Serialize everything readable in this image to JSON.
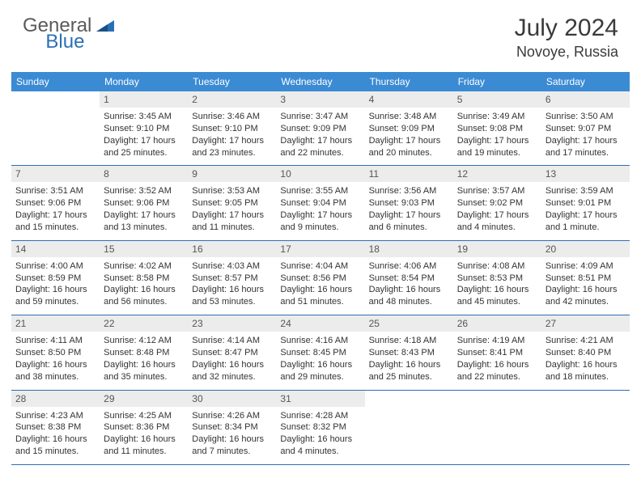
{
  "brand": {
    "part1": "General",
    "part2": "Blue"
  },
  "title": {
    "month_year": "July 2024",
    "location": "Novoye, Russia"
  },
  "day_headers": [
    "Sunday",
    "Monday",
    "Tuesday",
    "Wednesday",
    "Thursday",
    "Friday",
    "Saturday"
  ],
  "colors": {
    "header_bg": "#3b8bd4",
    "header_text": "#ffffff",
    "rule": "#2a6fb5",
    "daynum_bg": "#ececec",
    "daynum_text": "#555555",
    "body_text": "#333333",
    "brand_gray": "#5a5a5a",
    "brand_blue": "#2a6fb5"
  },
  "weeks": [
    [
      null,
      {
        "n": "1",
        "sr": "Sunrise: 3:45 AM",
        "ss": "Sunset: 9:10 PM",
        "d1": "Daylight: 17 hours",
        "d2": "and 25 minutes."
      },
      {
        "n": "2",
        "sr": "Sunrise: 3:46 AM",
        "ss": "Sunset: 9:10 PM",
        "d1": "Daylight: 17 hours",
        "d2": "and 23 minutes."
      },
      {
        "n": "3",
        "sr": "Sunrise: 3:47 AM",
        "ss": "Sunset: 9:09 PM",
        "d1": "Daylight: 17 hours",
        "d2": "and 22 minutes."
      },
      {
        "n": "4",
        "sr": "Sunrise: 3:48 AM",
        "ss": "Sunset: 9:09 PM",
        "d1": "Daylight: 17 hours",
        "d2": "and 20 minutes."
      },
      {
        "n": "5",
        "sr": "Sunrise: 3:49 AM",
        "ss": "Sunset: 9:08 PM",
        "d1": "Daylight: 17 hours",
        "d2": "and 19 minutes."
      },
      {
        "n": "6",
        "sr": "Sunrise: 3:50 AM",
        "ss": "Sunset: 9:07 PM",
        "d1": "Daylight: 17 hours",
        "d2": "and 17 minutes."
      }
    ],
    [
      {
        "n": "7",
        "sr": "Sunrise: 3:51 AM",
        "ss": "Sunset: 9:06 PM",
        "d1": "Daylight: 17 hours",
        "d2": "and 15 minutes."
      },
      {
        "n": "8",
        "sr": "Sunrise: 3:52 AM",
        "ss": "Sunset: 9:06 PM",
        "d1": "Daylight: 17 hours",
        "d2": "and 13 minutes."
      },
      {
        "n": "9",
        "sr": "Sunrise: 3:53 AM",
        "ss": "Sunset: 9:05 PM",
        "d1": "Daylight: 17 hours",
        "d2": "and 11 minutes."
      },
      {
        "n": "10",
        "sr": "Sunrise: 3:55 AM",
        "ss": "Sunset: 9:04 PM",
        "d1": "Daylight: 17 hours",
        "d2": "and 9 minutes."
      },
      {
        "n": "11",
        "sr": "Sunrise: 3:56 AM",
        "ss": "Sunset: 9:03 PM",
        "d1": "Daylight: 17 hours",
        "d2": "and 6 minutes."
      },
      {
        "n": "12",
        "sr": "Sunrise: 3:57 AM",
        "ss": "Sunset: 9:02 PM",
        "d1": "Daylight: 17 hours",
        "d2": "and 4 minutes."
      },
      {
        "n": "13",
        "sr": "Sunrise: 3:59 AM",
        "ss": "Sunset: 9:01 PM",
        "d1": "Daylight: 17 hours",
        "d2": "and 1 minute."
      }
    ],
    [
      {
        "n": "14",
        "sr": "Sunrise: 4:00 AM",
        "ss": "Sunset: 8:59 PM",
        "d1": "Daylight: 16 hours",
        "d2": "and 59 minutes."
      },
      {
        "n": "15",
        "sr": "Sunrise: 4:02 AM",
        "ss": "Sunset: 8:58 PM",
        "d1": "Daylight: 16 hours",
        "d2": "and 56 minutes."
      },
      {
        "n": "16",
        "sr": "Sunrise: 4:03 AM",
        "ss": "Sunset: 8:57 PM",
        "d1": "Daylight: 16 hours",
        "d2": "and 53 minutes."
      },
      {
        "n": "17",
        "sr": "Sunrise: 4:04 AM",
        "ss": "Sunset: 8:56 PM",
        "d1": "Daylight: 16 hours",
        "d2": "and 51 minutes."
      },
      {
        "n": "18",
        "sr": "Sunrise: 4:06 AM",
        "ss": "Sunset: 8:54 PM",
        "d1": "Daylight: 16 hours",
        "d2": "and 48 minutes."
      },
      {
        "n": "19",
        "sr": "Sunrise: 4:08 AM",
        "ss": "Sunset: 8:53 PM",
        "d1": "Daylight: 16 hours",
        "d2": "and 45 minutes."
      },
      {
        "n": "20",
        "sr": "Sunrise: 4:09 AM",
        "ss": "Sunset: 8:51 PM",
        "d1": "Daylight: 16 hours",
        "d2": "and 42 minutes."
      }
    ],
    [
      {
        "n": "21",
        "sr": "Sunrise: 4:11 AM",
        "ss": "Sunset: 8:50 PM",
        "d1": "Daylight: 16 hours",
        "d2": "and 38 minutes."
      },
      {
        "n": "22",
        "sr": "Sunrise: 4:12 AM",
        "ss": "Sunset: 8:48 PM",
        "d1": "Daylight: 16 hours",
        "d2": "and 35 minutes."
      },
      {
        "n": "23",
        "sr": "Sunrise: 4:14 AM",
        "ss": "Sunset: 8:47 PM",
        "d1": "Daylight: 16 hours",
        "d2": "and 32 minutes."
      },
      {
        "n": "24",
        "sr": "Sunrise: 4:16 AM",
        "ss": "Sunset: 8:45 PM",
        "d1": "Daylight: 16 hours",
        "d2": "and 29 minutes."
      },
      {
        "n": "25",
        "sr": "Sunrise: 4:18 AM",
        "ss": "Sunset: 8:43 PM",
        "d1": "Daylight: 16 hours",
        "d2": "and 25 minutes."
      },
      {
        "n": "26",
        "sr": "Sunrise: 4:19 AM",
        "ss": "Sunset: 8:41 PM",
        "d1": "Daylight: 16 hours",
        "d2": "and 22 minutes."
      },
      {
        "n": "27",
        "sr": "Sunrise: 4:21 AM",
        "ss": "Sunset: 8:40 PM",
        "d1": "Daylight: 16 hours",
        "d2": "and 18 minutes."
      }
    ],
    [
      {
        "n": "28",
        "sr": "Sunrise: 4:23 AM",
        "ss": "Sunset: 8:38 PM",
        "d1": "Daylight: 16 hours",
        "d2": "and 15 minutes."
      },
      {
        "n": "29",
        "sr": "Sunrise: 4:25 AM",
        "ss": "Sunset: 8:36 PM",
        "d1": "Daylight: 16 hours",
        "d2": "and 11 minutes."
      },
      {
        "n": "30",
        "sr": "Sunrise: 4:26 AM",
        "ss": "Sunset: 8:34 PM",
        "d1": "Daylight: 16 hours",
        "d2": "and 7 minutes."
      },
      {
        "n": "31",
        "sr": "Sunrise: 4:28 AM",
        "ss": "Sunset: 8:32 PM",
        "d1": "Daylight: 16 hours",
        "d2": "and 4 minutes."
      },
      null,
      null,
      null
    ]
  ]
}
